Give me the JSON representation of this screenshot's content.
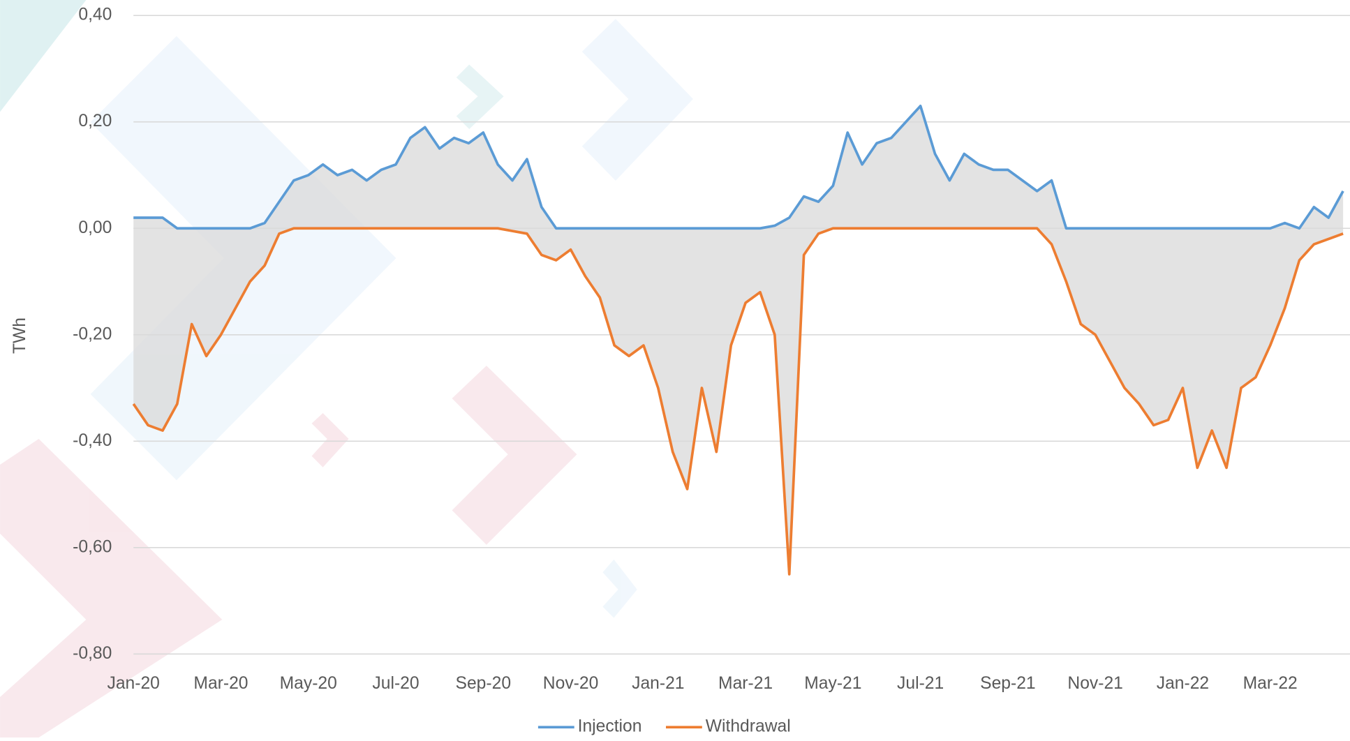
{
  "chart_data": {
    "type": "line",
    "y_label": "TWh",
    "categories": [
      "Jan-20",
      null,
      null,
      null,
      null,
      null,
      "Mar-20",
      null,
      null,
      null,
      null,
      null,
      "May-20",
      null,
      null,
      null,
      null,
      null,
      "Jul-20",
      null,
      null,
      null,
      null,
      null,
      "Sep-20",
      null,
      null,
      null,
      null,
      null,
      "Nov-20",
      null,
      null,
      null,
      null,
      null,
      "Jan-21",
      null,
      null,
      null,
      null,
      null,
      "Mar-21",
      null,
      null,
      null,
      null,
      null,
      "May-21",
      null,
      null,
      null,
      null,
      null,
      "Jul-21",
      null,
      null,
      null,
      null,
      null,
      "Sep-21",
      null,
      null,
      null,
      null,
      null,
      "Nov-21",
      null,
      null,
      null,
      null,
      null,
      "Jan-22",
      null,
      null,
      null,
      null,
      null,
      "Mar-22",
      null,
      null,
      null,
      null,
      null
    ],
    "series": [
      {
        "name": "Injection",
        "color": "#5b9bd5",
        "values": [
          0.02,
          0.02,
          0.02,
          0,
          0,
          0,
          0,
          0,
          0,
          0.01,
          0.05,
          0.09,
          0.1,
          0.12,
          0.1,
          0.11,
          0.09,
          0.11,
          0.12,
          0.17,
          0.19,
          0.15,
          0.17,
          0.16,
          0.18,
          0.12,
          0.09,
          0.13,
          0.04,
          0,
          0,
          0,
          0,
          0,
          0,
          0,
          0,
          0,
          0,
          0,
          0,
          0,
          0,
          0,
          0.005,
          0.02,
          0.06,
          0.05,
          0.08,
          0.18,
          0.12,
          0.16,
          0.17,
          0.2,
          0.23,
          0.14,
          0.09,
          0.14,
          0.12,
          0.11,
          0.11,
          0.09,
          0.07,
          0.09,
          0,
          0,
          0,
          0,
          0,
          0,
          0,
          0,
          0,
          0,
          0,
          0,
          0,
          0,
          0,
          0.01,
          0,
          0.04,
          0.02,
          0.07
        ]
      },
      {
        "name": "Withdrawal",
        "color": "#ed7d31",
        "values": [
          -0.33,
          -0.37,
          -0.38,
          -0.33,
          -0.18,
          -0.24,
          -0.2,
          -0.15,
          -0.1,
          -0.07,
          -0.01,
          0,
          0,
          0,
          0,
          0,
          0,
          0,
          0,
          0,
          0,
          0,
          0,
          0,
          0,
          0,
          -0.005,
          -0.01,
          -0.05,
          -0.06,
          -0.04,
          -0.09,
          -0.13,
          -0.22,
          -0.24,
          -0.22,
          -0.3,
          -0.42,
          -0.49,
          -0.3,
          -0.42,
          -0.22,
          -0.14,
          -0.12,
          -0.2,
          -0.65,
          -0.05,
          -0.01,
          0,
          0,
          0,
          0,
          0,
          0,
          0,
          0,
          0,
          0,
          0,
          0,
          0,
          0,
          0,
          -0.03,
          -0.1,
          -0.18,
          -0.2,
          -0.25,
          -0.3,
          -0.33,
          -0.37,
          -0.36,
          -0.3,
          -0.45,
          -0.38,
          -0.45,
          -0.3,
          -0.28,
          -0.22,
          -0.15,
          -0.06,
          -0.03,
          -0.02,
          -0.01
        ]
      }
    ],
    "ylim": [
      -0.8,
      0.4
    ],
    "yticks": [
      {
        "value": -0.8,
        "label": "-0,80"
      },
      {
        "value": -0.6,
        "label": "-0,60"
      },
      {
        "value": -0.4,
        "label": "-0,40"
      },
      {
        "value": -0.2,
        "label": "-0,20"
      },
      {
        "value": 0,
        "label": "0,00"
      },
      {
        "value": 0.2,
        "label": "0,20"
      },
      {
        "value": 0.4,
        "label": "0,40"
      }
    ],
    "grid": true,
    "legend": "bottom"
  }
}
